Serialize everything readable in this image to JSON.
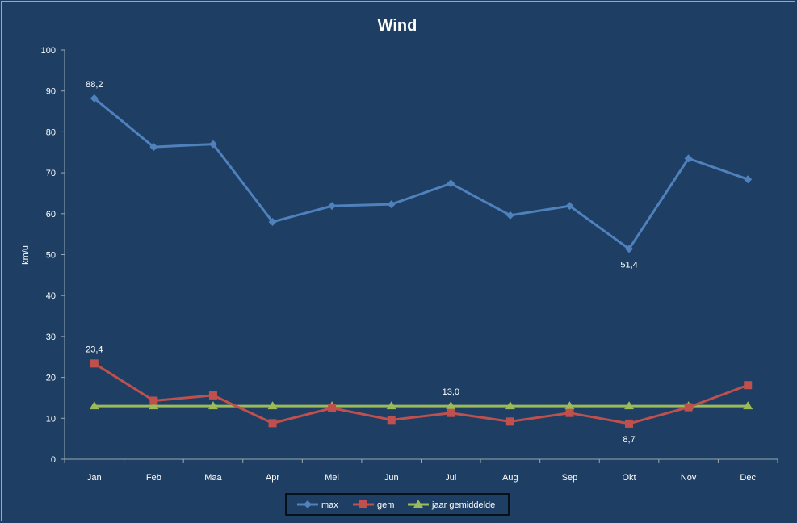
{
  "chart_data": {
    "type": "line",
    "title": "Wind",
    "xlabel": "",
    "ylabel": "km/u",
    "ylim": [
      0,
      100
    ],
    "yticks": [
      0,
      10,
      20,
      30,
      40,
      50,
      60,
      70,
      80,
      90,
      100
    ],
    "grid": false,
    "legend_position": "bottom",
    "categories": [
      "Jan",
      "Feb",
      "Maa",
      "Apr",
      "Mei",
      "Jun",
      "Jul",
      "Aug",
      "Sep",
      "Okt",
      "Nov",
      "Dec"
    ],
    "series": [
      {
        "name": "max",
        "color": "#4f81bd",
        "marker": "diamond",
        "values": [
          88.2,
          76.3,
          77.0,
          58.0,
          61.9,
          62.3,
          67.4,
          59.6,
          61.9,
          51.4,
          73.5,
          68.4
        ],
        "labels": [
          {
            "index": 0,
            "text": "88,2",
            "position": "above"
          },
          {
            "index": 9,
            "text": "51,4",
            "position": "below"
          }
        ]
      },
      {
        "name": "gem",
        "color": "#c0504d",
        "marker": "square",
        "values": [
          23.4,
          14.3,
          15.6,
          8.8,
          12.5,
          9.6,
          11.3,
          9.2,
          11.3,
          8.7,
          12.7,
          18.1
        ],
        "labels": [
          {
            "index": 0,
            "text": "23,4",
            "position": "above"
          },
          {
            "index": 9,
            "text": "8,7",
            "position": "below"
          }
        ]
      },
      {
        "name": "jaar gemiddelde",
        "color": "#9bbb59",
        "marker": "triangle",
        "values": [
          13.0,
          13.0,
          13.0,
          13.0,
          13.0,
          13.0,
          13.0,
          13.0,
          13.0,
          13.0,
          13.0,
          13.0
        ],
        "labels": [
          {
            "index": 6,
            "text": "13,0",
            "position": "above"
          }
        ]
      }
    ]
  },
  "colors": {
    "background": "#1e3f63",
    "axis": "#9aa7b5",
    "text": "#ffffff"
  }
}
